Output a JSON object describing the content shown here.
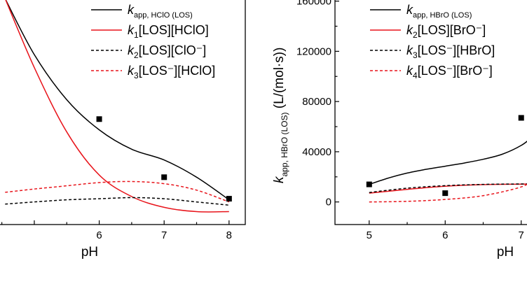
{
  "chart_data": [
    {
      "type": "line",
      "xlabel": "pH",
      "ylabel": "",
      "x_ticks": [
        "6",
        "7",
        "8"
      ],
      "y_ticks": [],
      "legend_placement": "top-right",
      "legend": [
        {
          "k": "k",
          "sub": "app, HClO (LOS)",
          "rest": "",
          "style": "solid",
          "color": "#000000"
        },
        {
          "k": "k",
          "sub": "1",
          "rest": "[LOS][HClO]",
          "style": "solid",
          "color": "#e8141b"
        },
        {
          "k": "k",
          "sub": "2",
          "rest": "[LOS][ClO⁻]",
          "style": "dashed",
          "color": "#000000"
        },
        {
          "k": "k",
          "sub": "3",
          "rest": "[LOS⁻][HClO]",
          "style": "dashed",
          "color": "#e8141b"
        }
      ],
      "series": [
        {
          "name": "k app, HClO (LOS)",
          "style": "solid",
          "color": "#000000",
          "x": [
            4.55,
            5.0,
            5.5,
            6.0,
            6.5,
            7.0,
            7.5,
            8.0
          ],
          "y": [
            1.0,
            0.74,
            0.53,
            0.39,
            0.3,
            0.25,
            0.17,
            0.065
          ]
        },
        {
          "name": "k1[LOS][HClO]",
          "style": "solid",
          "color": "#e8141b",
          "x": [
            4.55,
            5.0,
            5.5,
            6.0,
            6.5,
            7.0,
            7.5,
            8.0
          ],
          "y": [
            1.0,
            0.68,
            0.38,
            0.18,
            0.08,
            0.03,
            0.01,
            0.01
          ]
        },
        {
          "name": "k2[LOS][ClO⁻]",
          "style": "dashed",
          "color": "#000000",
          "x": [
            4.55,
            5.0,
            5.5,
            6.0,
            6.5,
            7.0,
            7.5,
            8.0
          ],
          "y": [
            0.045,
            0.055,
            0.065,
            0.07,
            0.075,
            0.07,
            0.055,
            0.04
          ]
        },
        {
          "name": "k3[LOS⁻][HClO]",
          "style": "dashed",
          "color": "#e8141b",
          "x": [
            4.55,
            5.0,
            5.5,
            6.0,
            6.5,
            7.0,
            7.5,
            8.0
          ],
          "y": [
            0.1,
            0.115,
            0.13,
            0.145,
            0.15,
            0.14,
            0.11,
            0.055
          ]
        }
      ],
      "points": {
        "x": [
          6,
          7,
          8
        ],
        "y": [
          0.44,
          0.17,
          0.07
        ]
      }
    },
    {
      "type": "line",
      "xlabel": "pH",
      "ylabel": "k app, HBrO (LOS) (L/(mol·s))",
      "ylabel_main": "k",
      "ylabel_sub": "app, HBrO (LOS)",
      "ylabel_rest": " (L/(mol·s))",
      "x_ticks": [
        "5",
        "6",
        "7"
      ],
      "y_ticks": [
        "0",
        "40000",
        "80000",
        "120000",
        "160000"
      ],
      "ylim": [
        -18000,
        162000
      ],
      "legend_placement": "top-right",
      "legend": [
        {
          "k": "k",
          "sub": "app, HBrO (LOS)",
          "rest": "",
          "style": "solid",
          "color": "#000000"
        },
        {
          "k": "k",
          "sub": "2",
          "rest": "[LOS][BrO⁻]",
          "style": "solid",
          "color": "#e8141b"
        },
        {
          "k": "k",
          "sub": "3",
          "rest": "[LOS⁻][HBrO]",
          "style": "dashed",
          "color": "#000000"
        },
        {
          "k": "k",
          "sub": "4",
          "rest": "[LOS⁻][BrO⁻]",
          "style": "dashed",
          "color": "#e8141b"
        }
      ],
      "series": [
        {
          "name": "k app, HBrO (LOS)",
          "style": "solid",
          "color": "#000000",
          "x": [
            5.0,
            5.25,
            5.5,
            5.75,
            6.0,
            6.25,
            6.5,
            6.75,
            7.0,
            7.15
          ],
          "y": [
            14000,
            19000,
            23000,
            26000,
            28500,
            31000,
            34000,
            38000,
            45000,
            52000
          ]
        },
        {
          "name": "k2[LOS][BrO⁻]",
          "style": "solid",
          "color": "#e8141b",
          "x": [
            5.0,
            5.5,
            6.0,
            6.5,
            7.0,
            7.15
          ],
          "y": [
            7000,
            10000,
            12500,
            13800,
            14200,
            14300
          ]
        },
        {
          "name": "k3[LOS⁻][HBrO]",
          "style": "dashed",
          "color": "#000000",
          "x": [
            5.0,
            5.5,
            6.0,
            6.5,
            7.0,
            7.15
          ],
          "y": [
            7500,
            11000,
            13000,
            14000,
            14300,
            14300
          ]
        },
        {
          "name": "k4[LOS⁻][BrO⁻]",
          "style": "dashed",
          "color": "#e8141b",
          "x": [
            5.0,
            5.5,
            6.0,
            6.5,
            7.0,
            7.15
          ],
          "y": [
            0,
            500,
            2000,
            5000,
            12000,
            18000
          ]
        }
      ],
      "points": {
        "x": [
          5,
          6,
          7
        ],
        "y": [
          14000,
          7000,
          67000
        ]
      }
    }
  ]
}
